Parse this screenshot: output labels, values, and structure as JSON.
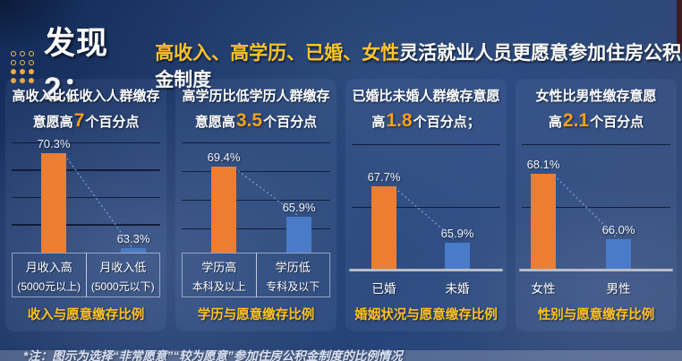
{
  "header": {
    "title": "发现2：",
    "highlight": "高收入、高学历、已婚、女性",
    "rest": "灵活就业人员更愿意参加住房公积金制度"
  },
  "colors": {
    "orange_bar": "#ED7D31",
    "blue_bar": "#4A7BC8",
    "highlight_yellow": "#FFC224",
    "number_orange": "#F9A01E"
  },
  "footer": {
    "note": "*注：图示为选择“非常愿意”“较为愿意”参加住房公积金制度的比例情况"
  },
  "chart_data": [
    {
      "type": "bar",
      "title_line1": "高收入比低收入人群缴存",
      "title_line2_pre": "意愿高",
      "title_num": "7",
      "title_line2_post": "个百分点",
      "categories": [
        "月收入高",
        "月收入低"
      ],
      "category_sub": [
        "(5000元以上)",
        "(5000元以下)"
      ],
      "values": [
        70.3,
        63.3
      ],
      "value_labels": [
        "70.3%",
        "63.3%"
      ],
      "series_colors": [
        "#ED7D31",
        "#4A7BC8"
      ],
      "ylim": [
        63,
        71
      ],
      "gridlines": [
        65,
        67,
        69,
        71
      ],
      "legend": "none",
      "bottom_title": "收入与愿意缴存比例"
    },
    {
      "type": "bar",
      "title_line1": "高学历比低学历人群缴存",
      "title_line2_pre": "意愿高",
      "title_num": "3.5",
      "title_line2_post": "个百分点",
      "categories": [
        "学历高",
        "学历低"
      ],
      "category_sub": [
        "本科及以上",
        "专科及以下"
      ],
      "values": [
        69.4,
        65.9
      ],
      "value_labels": [
        "69.4%",
        "65.9%"
      ],
      "series_colors": [
        "#ED7D31",
        "#4A7BC8"
      ],
      "ylim": [
        63.4,
        71
      ],
      "gridlines": [
        65,
        67,
        69,
        71
      ],
      "legend": "none",
      "bottom_title": "学历与愿意缴存比例"
    },
    {
      "type": "bar",
      "title_line1": "已婚比未婚人群缴存意愿",
      "title_line2_pre": "高",
      "title_num": "1.8",
      "title_line2_post": "个百分点；",
      "categories": [
        "已婚",
        "未婚"
      ],
      "category_sub": [
        "",
        ""
      ],
      "values": [
        67.7,
        65.9
      ],
      "value_labels": [
        "67.7%",
        "65.9%"
      ],
      "series_colors": [
        "#ED7D31",
        "#4A7BC8"
      ],
      "ylim": [
        65,
        69
      ],
      "gridlines": [
        67,
        69
      ],
      "legend": "none",
      "bottom_title": "婚姻状况与愿意缴存比例"
    },
    {
      "type": "bar",
      "title_line1": "女性比男性缴存意愿",
      "title_line2_pre": "高",
      "title_num": "2.1",
      "title_line2_post": "个百分点",
      "categories": [
        "女性",
        "男性"
      ],
      "category_sub": [
        "",
        ""
      ],
      "values": [
        68.1,
        66.0
      ],
      "value_labels": [
        "68.1%",
        "66.0%"
      ],
      "series_colors": [
        "#ED7D31",
        "#4A7BC8"
      ],
      "ylim": [
        65,
        69
      ],
      "gridlines": [
        67,
        69
      ],
      "legend": "none",
      "bottom_title": "性别与愿意缴存比例"
    }
  ]
}
